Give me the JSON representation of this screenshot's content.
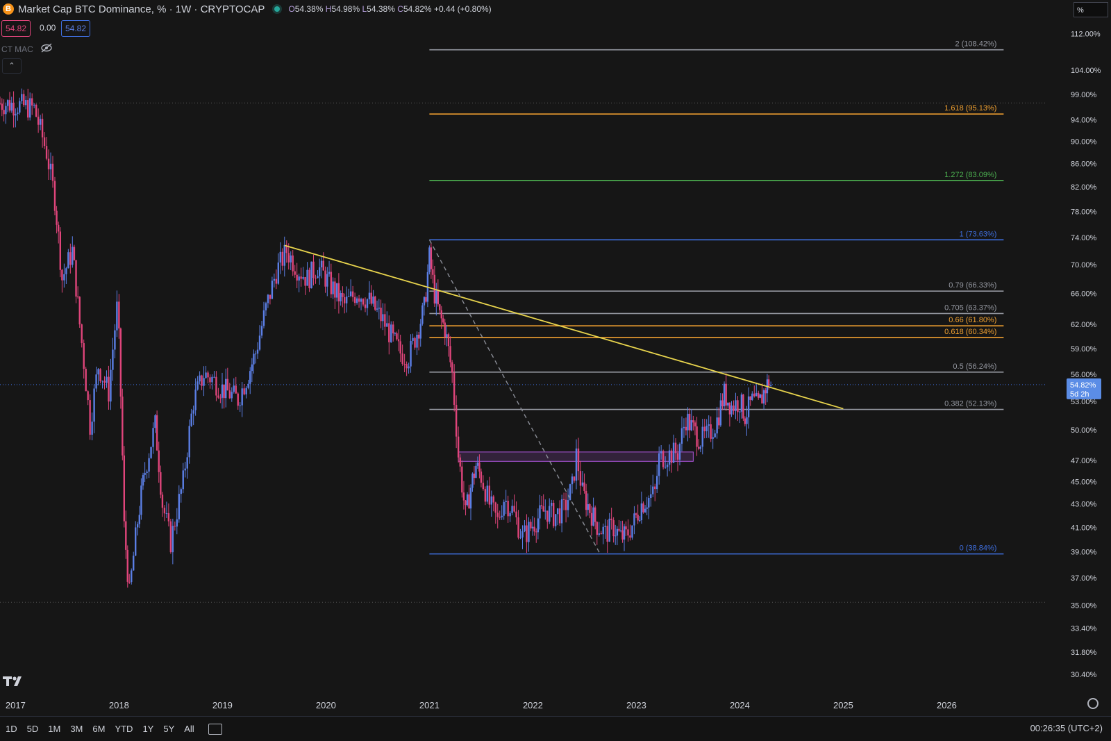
{
  "header": {
    "title": "Market Cap BTC Dominance, % · 1W · CRYPTOCAP",
    "coin_icon": "B",
    "ohlc": {
      "o": "54.38%",
      "h": "54.98%",
      "l": "54.38%",
      "c": "54.82%",
      "chg": "+0.44 (+0.80%)"
    },
    "o_lbl": "O",
    "h_lbl": "H",
    "l_lbl": "L",
    "c_lbl": "C"
  },
  "price_pills": {
    "sell": "54.82",
    "spread": "0.00",
    "buy": "54.82"
  },
  "indicator": {
    "name": "CT MAC"
  },
  "scale_unit": "%",
  "colors": {
    "up": "#5b7fe6",
    "down": "#e0457b",
    "trend": "#e8d44d",
    "bg": "#161616"
  },
  "chart_data": {
    "type": "candlestick",
    "x_ticks": [
      "2017",
      "2018",
      "2019",
      "2020",
      "2021",
      "2022",
      "2023",
      "2024",
      "2025",
      "2026"
    ],
    "y_ticks": [
      "112.00%",
      "104.00%",
      "99.00%",
      "94.00%",
      "90.00%",
      "86.00%",
      "82.00%",
      "78.00%",
      "74.00%",
      "70.00%",
      "66.00%",
      "62.00%",
      "59.00%",
      "56.00%",
      "53.00%",
      "50.00%",
      "47.00%",
      "45.00%",
      "43.00%",
      "41.00%",
      "39.00%",
      "37.00%",
      "35.00%",
      "33.40%",
      "31.80%",
      "30.40%"
    ],
    "y_scale": "log",
    "ylim": [
      29.8,
      115
    ],
    "xlim": [
      2016.85,
      2026.95
    ],
    "current": {
      "value": 54.82,
      "label": "54.82%",
      "countdown": "5d 2h"
    },
    "fib_levels": [
      {
        "ratio": "2",
        "value": 108.42,
        "label": "2 (108.42%)",
        "color": "#9598a1"
      },
      {
        "ratio": "1.618",
        "value": 95.13,
        "label": "1.618 (95.13%)",
        "color": "#f0a030"
      },
      {
        "ratio": "1.272",
        "value": 83.09,
        "label": "1.272 (83.09%)",
        "color": "#4caf50"
      },
      {
        "ratio": "1",
        "value": 73.63,
        "label": "1 (73.63%)",
        "color": "#3f6fe0"
      },
      {
        "ratio": "0.79",
        "value": 66.33,
        "label": "0.79 (66.33%)",
        "color": "#9598a1"
      },
      {
        "ratio": "0.705",
        "value": 63.37,
        "label": "0.705 (63.37%)",
        "color": "#9598a1"
      },
      {
        "ratio": "0.66",
        "value": 61.8,
        "label": "0.66 (61.80%)",
        "color": "#f0a030"
      },
      {
        "ratio": "0.618",
        "value": 60.34,
        "label": "0.618 (60.34%)",
        "color": "#f0a030"
      },
      {
        "ratio": "0.5",
        "value": 56.24,
        "label": "0.5 (56.24%)",
        "color": "#9598a1"
      },
      {
        "ratio": "0.382",
        "value": 52.13,
        "label": "0.382 (52.13%)",
        "color": "#9598a1"
      },
      {
        "ratio": "0",
        "value": 38.84,
        "label": "0 (38.84%)",
        "color": "#3f6fe0"
      }
    ],
    "fib_start_x": 2021.0,
    "fib_end_x": 2026.55,
    "trendline": {
      "from": [
        2019.6,
        72.8
      ],
      "to": [
        2025.0,
        52.2
      ]
    },
    "fib_anchor_line": {
      "from": [
        2021.0,
        73.63
      ],
      "to": [
        2022.65,
        38.84
      ]
    },
    "zone": {
      "x0": 2021.28,
      "x1": 2023.55,
      "y0": 46.9,
      "y1": 47.8,
      "color": "#b057e0"
    },
    "ref_lines": [
      {
        "value": 97.3
      },
      {
        "value": 35.2
      }
    ],
    "path_points": [
      [
        2016.85,
        97.2
      ],
      [
        2017.0,
        97.0
      ],
      [
        2017.18,
        96.2
      ],
      [
        2017.3,
        88.0
      ],
      [
        2017.38,
        80.0
      ],
      [
        2017.45,
        68.0
      ],
      [
        2017.55,
        72.0
      ],
      [
        2017.62,
        62.0
      ],
      [
        2017.72,
        50.5
      ],
      [
        2017.8,
        57.0
      ],
      [
        2017.9,
        54.0
      ],
      [
        2017.98,
        64.0
      ],
      [
        2018.0,
        60.0
      ],
      [
        2018.05,
        41.0
      ],
      [
        2018.1,
        35.8
      ],
      [
        2018.18,
        41.5
      ],
      [
        2018.25,
        46.0
      ],
      [
        2018.35,
        50.5
      ],
      [
        2018.42,
        43.0
      ],
      [
        2018.5,
        39.8
      ],
      [
        2018.62,
        45.0
      ],
      [
        2018.72,
        53.0
      ],
      [
        2018.82,
        56.0
      ],
      [
        2018.9,
        55.5
      ],
      [
        2018.98,
        54.5
      ],
      [
        2019.05,
        54.0
      ],
      [
        2019.15,
        53.2
      ],
      [
        2019.25,
        56.0
      ],
      [
        2019.32,
        58.5
      ],
      [
        2019.42,
        64.0
      ],
      [
        2019.52,
        69.0
      ],
      [
        2019.62,
        72.0
      ],
      [
        2019.72,
        69.5
      ],
      [
        2019.82,
        68.0
      ],
      [
        2019.92,
        69.8
      ],
      [
        2020.05,
        67.0
      ],
      [
        2020.18,
        64.5
      ],
      [
        2020.3,
        66.2
      ],
      [
        2020.42,
        65.0
      ],
      [
        2020.55,
        62.5
      ],
      [
        2020.65,
        60.0
      ],
      [
        2020.72,
        58.5
      ],
      [
        2020.8,
        58.0
      ],
      [
        2020.88,
        61.0
      ],
      [
        2020.95,
        64.0
      ],
      [
        2021.0,
        71.0
      ],
      [
        2021.05,
        66.0
      ],
      [
        2021.1,
        63.0
      ],
      [
        2021.15,
        61.5
      ],
      [
        2021.22,
        56.0
      ],
      [
        2021.28,
        47.5
      ],
      [
        2021.35,
        42.0
      ],
      [
        2021.4,
        44.5
      ],
      [
        2021.45,
        46.5
      ],
      [
        2021.5,
        45.5
      ],
      [
        2021.58,
        43.0
      ],
      [
        2021.66,
        41.5
      ],
      [
        2021.72,
        43.5
      ],
      [
        2021.8,
        42.5
      ],
      [
        2021.9,
        40.2
      ],
      [
        2021.98,
        41.0
      ],
      [
        2022.05,
        41.8
      ],
      [
        2022.12,
        42.5
      ],
      [
        2022.2,
        42.0
      ],
      [
        2022.3,
        42.5
      ],
      [
        2022.38,
        44.5
      ],
      [
        2022.42,
        47.5
      ],
      [
        2022.48,
        44.0
      ],
      [
        2022.55,
        42.5
      ],
      [
        2022.62,
        41.2
      ],
      [
        2022.7,
        40.5
      ],
      [
        2022.78,
        41.0
      ],
      [
        2022.85,
        40.2
      ],
      [
        2022.9,
        40.3
      ],
      [
        2022.98,
        41.5
      ],
      [
        2023.05,
        43.0
      ],
      [
        2023.12,
        43.5
      ],
      [
        2023.18,
        44.0
      ],
      [
        2023.22,
        47.2
      ],
      [
        2023.3,
        47.5
      ],
      [
        2023.4,
        47.8
      ],
      [
        2023.48,
        51.2
      ],
      [
        2023.55,
        50.0
      ],
      [
        2023.62,
        49.0
      ],
      [
        2023.7,
        49.5
      ],
      [
        2023.78,
        51.0
      ],
      [
        2023.85,
        53.8
      ],
      [
        2023.92,
        52.5
      ],
      [
        2024.0,
        53.0
      ],
      [
        2024.05,
        51.5
      ],
      [
        2024.12,
        53.0
      ],
      [
        2024.18,
        52.5
      ],
      [
        2024.25,
        54.5
      ],
      [
        2024.28,
        55.2
      ],
      [
        2024.3,
        54.8
      ]
    ]
  },
  "bottom_bar": {
    "timeframes": [
      "1D",
      "5D",
      "1M",
      "3M",
      "6M",
      "YTD",
      "1Y",
      "5Y",
      "All"
    ],
    "clock": "00:26:35 (UTC+2)"
  }
}
